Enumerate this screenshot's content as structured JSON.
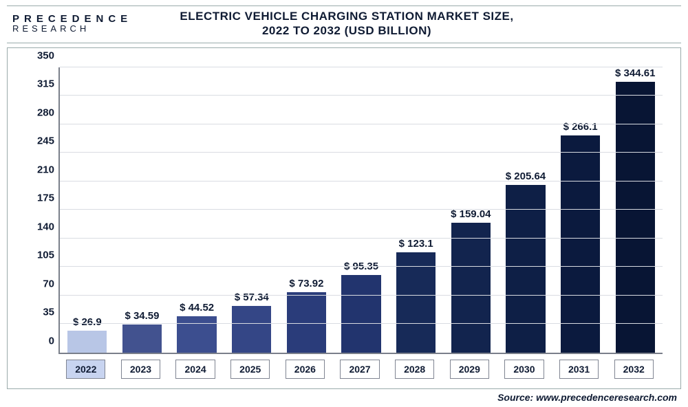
{
  "logo": {
    "top": "PRECEDENCE",
    "bottom": "RESEARCH"
  },
  "title": {
    "line1": "ELECTRIC VEHICLE CHARGING STATION MARKET SIZE,",
    "line2": "2022 TO 2032 (USD BILLION)"
  },
  "source": "Source: www.precedenceresearch.com",
  "chart": {
    "type": "bar",
    "ylim": [
      0,
      350
    ],
    "ytick_step": 35,
    "yticks": [
      0,
      35,
      70,
      105,
      140,
      175,
      210,
      245,
      280,
      315,
      350
    ],
    "grid_color": "#d9dce2",
    "axis_color": "#7a7f8a",
    "background_color": "#ffffff",
    "bar_width": 0.72,
    "label_fontsize": 15,
    "categories": [
      "2022",
      "2023",
      "2024",
      "2025",
      "2026",
      "2027",
      "2028",
      "2029",
      "2030",
      "2031",
      "2032"
    ],
    "values": [
      26.9,
      34.59,
      44.52,
      57.34,
      73.92,
      95.35,
      123.1,
      159.04,
      205.64,
      266.1,
      344.61
    ],
    "value_labels": [
      "$ 26.9",
      "$ 34.59",
      "$ 44.52",
      "$ 57.34",
      "$ 73.92",
      "$ 95.35",
      "$ 123.1",
      "$ 159.04",
      "$ 205.64",
      "$ 266.1",
      "$ 344.61"
    ],
    "bar_colors": [
      "#b8c6e6",
      "#42528f",
      "#3c4e8f",
      "#344686",
      "#2a3c7a",
      "#22346e",
      "#172a58",
      "#12244e",
      "#0e1f46",
      "#0b1a3e",
      "#081534"
    ],
    "highlight_index": 0
  }
}
